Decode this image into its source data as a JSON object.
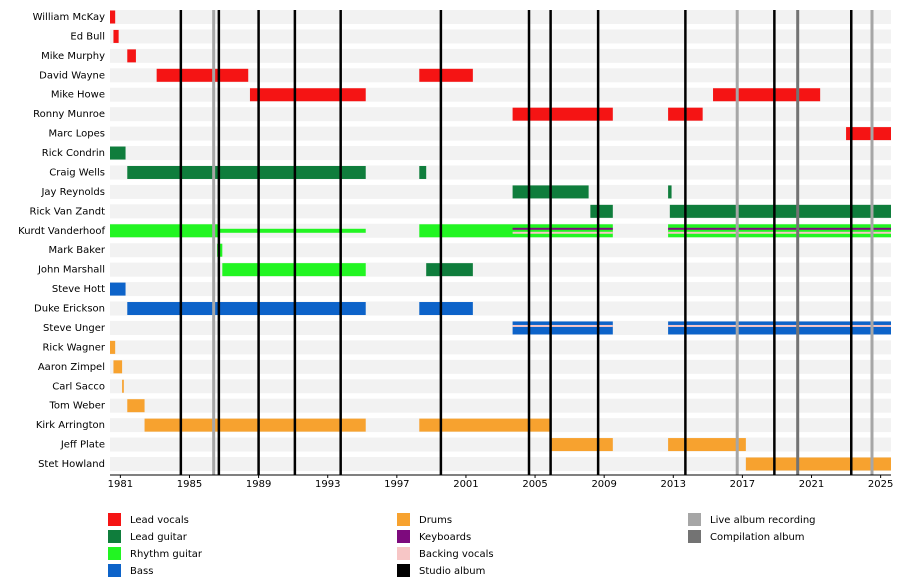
{
  "chart_data": {
    "type": "timeline",
    "xlim": [
      1980.4,
      2025.6
    ],
    "xticks": [
      1981,
      1985,
      1989,
      1993,
      1997,
      2001,
      2005,
      2009,
      2013,
      2017,
      2021,
      2025
    ],
    "roles": [
      {
        "name": "Lead vocals",
        "color": "#f51414"
      },
      {
        "name": "Lead guitar",
        "color": "#0f7d3c"
      },
      {
        "name": "Rhythm guitar",
        "color": "#22f522"
      },
      {
        "name": "Bass",
        "color": "#0d63c9"
      },
      {
        "name": "Drums",
        "color": "#f7a22f"
      },
      {
        "name": "Keyboards",
        "color": "#7d0a7d"
      },
      {
        "name": "Backing vocals",
        "color": "#f7c6c6"
      },
      {
        "name": "Studio album",
        "color": "#000000"
      },
      {
        "name": "Live album recording",
        "color": "#a6a6a6"
      },
      {
        "name": "Compilation album",
        "color": "#737373"
      }
    ],
    "members": [
      {
        "name": "William McKay",
        "bars": [
          {
            "role": 0,
            "start": 1980.4,
            "end": 1980.7,
            "style": "full"
          }
        ]
      },
      {
        "name": "Ed Bull",
        "bars": [
          {
            "role": 0,
            "start": 1980.6,
            "end": 1980.9,
            "style": "full"
          }
        ]
      },
      {
        "name": "Mike Murphy",
        "bars": [
          {
            "role": 0,
            "start": 1981.4,
            "end": 1981.9,
            "style": "full"
          }
        ]
      },
      {
        "name": "David Wayne",
        "bars": [
          {
            "role": 0,
            "start": 1983.1,
            "end": 1988.4,
            "style": "full"
          },
          {
            "role": 0,
            "start": 1998.3,
            "end": 2001.4,
            "style": "full"
          }
        ]
      },
      {
        "name": "Mike Howe",
        "bars": [
          {
            "role": 0,
            "start": 1988.5,
            "end": 1995.2,
            "style": "full"
          },
          {
            "role": 0,
            "start": 2015.3,
            "end": 2021.5,
            "style": "full"
          }
        ]
      },
      {
        "name": "Ronny Munroe",
        "bars": [
          {
            "role": 0,
            "start": 2003.7,
            "end": 2009.5,
            "style": "full"
          },
          {
            "role": 0,
            "start": 2012.7,
            "end": 2014.7,
            "style": "full"
          }
        ]
      },
      {
        "name": "Marc Lopes",
        "bars": [
          {
            "role": 0,
            "start": 2023.0,
            "end": 2025.6,
            "style": "full"
          }
        ]
      },
      {
        "name": "Rick Condrin",
        "bars": [
          {
            "role": 1,
            "start": 1980.4,
            "end": 1981.3,
            "style": "full"
          }
        ]
      },
      {
        "name": "Craig Wells",
        "bars": [
          {
            "role": 1,
            "start": 1981.4,
            "end": 1995.2,
            "style": "full"
          },
          {
            "role": 1,
            "start": 1998.3,
            "end": 1998.7,
            "style": "full"
          }
        ]
      },
      {
        "name": "Jay Reynolds",
        "bars": [
          {
            "role": 1,
            "start": 2003.7,
            "end": 2008.1,
            "style": "full"
          },
          {
            "role": 1,
            "start": 2012.7,
            "end": 2012.9,
            "style": "full"
          }
        ]
      },
      {
        "name": "Rick Van Zandt",
        "bars": [
          {
            "role": 1,
            "start": 2008.2,
            "end": 2009.5,
            "style": "full"
          },
          {
            "role": 1,
            "start": 2012.8,
            "end": 2025.6,
            "style": "full"
          }
        ]
      },
      {
        "name": "Kurdt Vanderhoof",
        "bars": [
          {
            "role": 2,
            "start": 1980.4,
            "end": 1986.7,
            "style": "full"
          },
          {
            "role": 2,
            "start": 1986.7,
            "end": 1995.2,
            "style": "thin"
          },
          {
            "role": 2,
            "start": 1998.3,
            "end": 2009.5,
            "style": "full"
          },
          {
            "role": 2,
            "start": 2012.7,
            "end": 2025.6,
            "style": "full"
          },
          {
            "role": 5,
            "start": 2003.7,
            "end": 2009.5,
            "style": "band"
          },
          {
            "role": 6,
            "start": 2003.7,
            "end": 2009.5,
            "style": "band"
          },
          {
            "role": 5,
            "start": 2012.7,
            "end": 2025.6,
            "style": "band"
          },
          {
            "role": 6,
            "start": 2012.7,
            "end": 2025.6,
            "style": "band"
          }
        ]
      },
      {
        "name": "Mark Baker",
        "bars": [
          {
            "role": 2,
            "start": 1986.6,
            "end": 1986.9,
            "style": "full"
          }
        ]
      },
      {
        "name": "John Marshall",
        "bars": [
          {
            "role": 2,
            "start": 1986.9,
            "end": 1995.2,
            "style": "full"
          },
          {
            "role": 1,
            "start": 1998.7,
            "end": 2001.4,
            "style": "full"
          }
        ]
      },
      {
        "name": "Steve Hott",
        "bars": [
          {
            "role": 3,
            "start": 1980.4,
            "end": 1981.3,
            "style": "full"
          }
        ]
      },
      {
        "name": "Duke Erickson",
        "bars": [
          {
            "role": 3,
            "start": 1981.4,
            "end": 1995.2,
            "style": "full"
          },
          {
            "role": 3,
            "start": 1998.3,
            "end": 2001.4,
            "style": "full"
          }
        ]
      },
      {
        "name": "Steve Unger",
        "bars": [
          {
            "role": 3,
            "start": 2003.7,
            "end": 2009.5,
            "style": "full"
          },
          {
            "role": 3,
            "start": 2012.7,
            "end": 2025.6,
            "style": "full"
          },
          {
            "role": 6,
            "start": 2003.7,
            "end": 2009.5,
            "style": "band"
          },
          {
            "role": 6,
            "start": 2012.7,
            "end": 2025.6,
            "style": "band"
          }
        ]
      },
      {
        "name": "Rick Wagner",
        "bars": [
          {
            "role": 4,
            "start": 1980.4,
            "end": 1980.7,
            "style": "full"
          }
        ]
      },
      {
        "name": "Aaron Zimpel",
        "bars": [
          {
            "role": 4,
            "start": 1980.6,
            "end": 1981.1,
            "style": "full"
          }
        ]
      },
      {
        "name": "Carl Sacco",
        "bars": [
          {
            "role": 4,
            "start": 1981.1,
            "end": 1981.2,
            "style": "full"
          }
        ]
      },
      {
        "name": "Tom Weber",
        "bars": [
          {
            "role": 4,
            "start": 1981.4,
            "end": 1982.4,
            "style": "full"
          }
        ]
      },
      {
        "name": "Kirk Arrington",
        "bars": [
          {
            "role": 4,
            "start": 1982.4,
            "end": 1995.2,
            "style": "full"
          },
          {
            "role": 4,
            "start": 1998.3,
            "end": 2005.9,
            "style": "full"
          }
        ]
      },
      {
        "name": "Jeff Plate",
        "bars": [
          {
            "role": 4,
            "start": 2005.9,
            "end": 2009.5,
            "style": "full"
          },
          {
            "role": 4,
            "start": 2012.7,
            "end": 2017.2,
            "style": "full"
          }
        ]
      },
      {
        "name": "Stet Howland",
        "bars": [
          {
            "role": 4,
            "start": 2017.2,
            "end": 2025.6,
            "style": "full"
          }
        ]
      }
    ],
    "events": [
      {
        "role": 7,
        "x": 1984.5
      },
      {
        "role": 8,
        "x": 1986.4
      },
      {
        "role": 7,
        "x": 1986.7
      },
      {
        "role": 7,
        "x": 1989.0
      },
      {
        "role": 7,
        "x": 1991.1
      },
      {
        "role": 7,
        "x": 1993.75
      },
      {
        "role": 7,
        "x": 1999.55
      },
      {
        "role": 7,
        "x": 2004.65
      },
      {
        "role": 7,
        "x": 2005.9
      },
      {
        "role": 7,
        "x": 2008.65
      },
      {
        "role": 7,
        "x": 2013.7
      },
      {
        "role": 8,
        "x": 2016.7
      },
      {
        "role": 7,
        "x": 2018.85
      },
      {
        "role": 9,
        "x": 2020.2
      },
      {
        "role": 7,
        "x": 2023.3
      },
      {
        "role": 8,
        "x": 2024.5
      }
    ]
  }
}
